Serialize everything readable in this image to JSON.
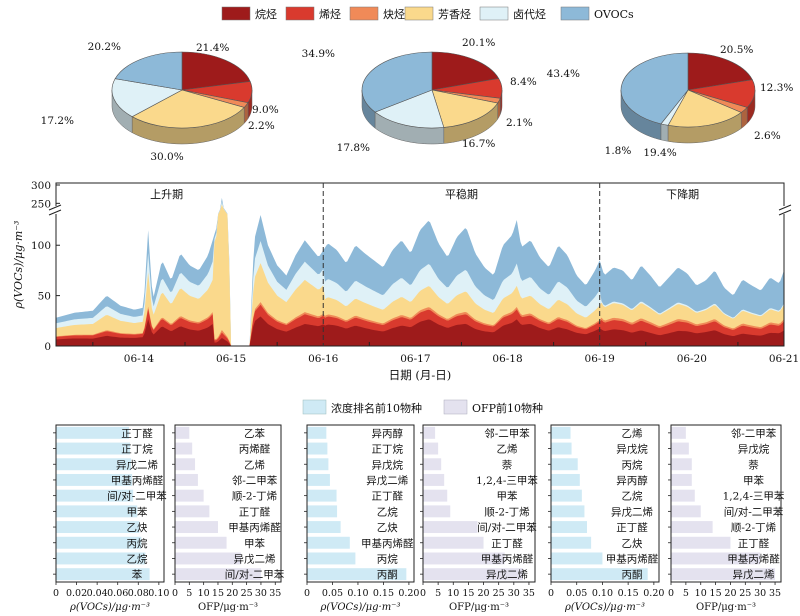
{
  "colors": {
    "alkane": "#9e1b1b",
    "alkene": "#d93a2e",
    "alkyne": "#f08a58",
    "aromatic": "#fad98c",
    "halo": "#dff1f7",
    "ovoc": "#8db9d8",
    "conc_bar": "#cfeaf5",
    "ofp_bar": "#e4e2ef"
  },
  "chart_data": [
    {
      "type": "pie",
      "name": "pie-rising",
      "labels": [
        "烷烃",
        "烯烃",
        "炔烃",
        "芳香烃",
        "卤代烃",
        "OVOCs"
      ],
      "values": [
        21.4,
        9.0,
        2.2,
        30.0,
        17.2,
        20.2
      ],
      "value_labels": [
        "21.4%",
        "9.0%",
        "2.2%",
        "30.0%",
        "17.2%",
        "20.2%"
      ],
      "legend_position": "top"
    },
    {
      "type": "pie",
      "name": "pie-stable",
      "labels": [
        "烷烃",
        "烯烃",
        "炔烃",
        "芳香烃",
        "卤代烃",
        "OVOCs"
      ],
      "values": [
        20.1,
        8.4,
        2.1,
        16.7,
        17.8,
        34.9
      ],
      "value_labels": [
        "20.1%",
        "8.4%",
        "2.1%",
        "16.7%",
        "17.8%",
        "34.9%"
      ]
    },
    {
      "type": "pie",
      "name": "pie-falling",
      "labels": [
        "烷烃",
        "烯烃",
        "炔烃",
        "芳香烃",
        "卤代烃",
        "OVOCs"
      ],
      "values": [
        20.5,
        12.3,
        2.6,
        19.4,
        1.8,
        43.4
      ],
      "value_labels": [
        "20.5%",
        "12.3%",
        "2.6%",
        "19.4%",
        "1.8%",
        "43.4%"
      ]
    },
    {
      "type": "area",
      "name": "timeseries",
      "stacked": true,
      "xlabel": "日期 (月-日)",
      "ylabel": "ρ(VOCs)/μg·m⁻³",
      "x_tick_labels": [
        "06-14",
        "06-15",
        "06-16",
        "06-17",
        "06-18",
        "06-19",
        "06-20",
        "06-21"
      ],
      "x_range_days": [
        13.6,
        21.5
      ],
      "y_ticks_lower": [
        0,
        50,
        100
      ],
      "y_ticks_upper": [
        250,
        300
      ],
      "y_break": [
        130,
        240
      ],
      "ylim": [
        0,
        300
      ],
      "periods": [
        {
          "label": "上升期",
          "start_day": 13.6,
          "end_day": 16.5
        },
        {
          "label": "平稳期",
          "start_day": 16.5,
          "end_day": 19.5
        },
        {
          "label": "下降期",
          "start_day": 19.5,
          "end_day": 21.5
        }
      ],
      "series_order": [
        "烷烃",
        "烯烃",
        "炔烃",
        "芳香烃",
        "卤代烃",
        "OVOCs"
      ],
      "total_keyframes": [
        [
          13.6,
          28
        ],
        [
          13.8,
          33
        ],
        [
          14.0,
          35
        ],
        [
          14.15,
          50
        ],
        [
          14.3,
          40
        ],
        [
          14.45,
          36
        ],
        [
          14.55,
          38
        ],
        [
          14.6,
          115
        ],
        [
          14.65,
          45
        ],
        [
          14.75,
          85
        ],
        [
          14.85,
          65
        ],
        [
          14.95,
          92
        ],
        [
          15.05,
          80
        ],
        [
          15.15,
          75
        ],
        [
          15.25,
          90
        ],
        [
          15.35,
          120
        ],
        [
          15.4,
          265
        ],
        [
          15.47,
          130
        ],
        [
          15.5,
          0
        ],
        [
          15.7,
          0
        ],
        [
          15.75,
          105
        ],
        [
          15.82,
          130
        ],
        [
          15.9,
          100
        ],
        [
          16.0,
          80
        ],
        [
          16.1,
          70
        ],
        [
          16.2,
          90
        ],
        [
          16.3,
          105
        ],
        [
          16.45,
          88
        ],
        [
          16.55,
          102
        ],
        [
          16.65,
          95
        ],
        [
          16.75,
          82
        ],
        [
          16.85,
          100
        ],
        [
          16.95,
          92
        ],
        [
          17.05,
          85
        ],
        [
          17.15,
          78
        ],
        [
          17.25,
          95
        ],
        [
          17.35,
          105
        ],
        [
          17.45,
          92
        ],
        [
          17.55,
          115
        ],
        [
          17.65,
          125
        ],
        [
          17.75,
          102
        ],
        [
          17.85,
          88
        ],
        [
          17.95,
          108
        ],
        [
          18.05,
          118
        ],
        [
          18.15,
          92
        ],
        [
          18.25,
          78
        ],
        [
          18.35,
          70
        ],
        [
          18.45,
          100
        ],
        [
          18.55,
          110
        ],
        [
          18.6,
          125
        ],
        [
          18.65,
          98
        ],
        [
          18.75,
          105
        ],
        [
          18.85,
          88
        ],
        [
          18.95,
          78
        ],
        [
          19.05,
          100
        ],
        [
          19.15,
          90
        ],
        [
          19.25,
          70
        ],
        [
          19.35,
          60
        ],
        [
          19.45,
          75
        ],
        [
          19.5,
          85
        ],
        [
          19.55,
          70
        ],
        [
          19.65,
          78
        ],
        [
          19.75,
          75
        ],
        [
          19.85,
          65
        ],
        [
          19.95,
          80
        ],
        [
          20.05,
          70
        ],
        [
          20.15,
          58
        ],
        [
          20.25,
          68
        ],
        [
          20.35,
          78
        ],
        [
          20.45,
          72
        ],
        [
          20.55,
          60
        ],
        [
          20.65,
          65
        ],
        [
          20.75,
          75
        ],
        [
          20.85,
          58
        ],
        [
          20.95,
          50
        ],
        [
          21.05,
          66
        ],
        [
          21.15,
          60
        ],
        [
          21.25,
          55
        ],
        [
          21.35,
          68
        ],
        [
          21.45,
          62
        ],
        [
          21.5,
          75
        ]
      ],
      "composition_by_period": [
        [
          0.22,
          0.09,
          0.02,
          0.3,
          0.17,
          0.2
        ],
        [
          0.2,
          0.08,
          0.02,
          0.17,
          0.18,
          0.35
        ],
        [
          0.2,
          0.12,
          0.03,
          0.19,
          0.02,
          0.44
        ]
      ],
      "aromatic_spike": {
        "start_day": 15.3,
        "end_day": 15.55,
        "values": [
          220,
          0
        ]
      }
    },
    {
      "type": "bar",
      "orientation": "horizontal",
      "name": "conc-rising",
      "categories": [
        "正丁醛",
        "正丁烷",
        "异戊二烯",
        "甲基丙烯醛",
        "间/对-二甲苯",
        "甲苯",
        "乙炔",
        "丙烷",
        "乙烷",
        "苯"
      ],
      "values": [
        0.071,
        0.072,
        0.073,
        0.074,
        0.075,
        0.079,
        0.081,
        0.083,
        0.087,
        0.091
      ],
      "xlabel": "ρ(VOCs)/μg·m⁻³",
      "x_ticks": [
        0,
        0.02,
        0.04,
        0.06,
        0.08,
        0.1
      ],
      "x_tick_labels": [
        "0",
        "0.02",
        "0.04",
        "0.06",
        "0.08",
        "0.10"
      ],
      "xlim": [
        0,
        0.105
      ]
    },
    {
      "type": "bar",
      "orientation": "horizontal",
      "name": "ofp-rising",
      "categories": [
        "乙苯",
        "丙烯醛",
        "乙烯",
        "邻-二甲苯",
        "顺-2-丁烯",
        "正丁醛",
        "甲基丙烯醛",
        "甲苯",
        "异戊二烯",
        "间/对-二甲苯"
      ],
      "values": [
        5,
        6,
        7,
        8,
        10,
        12,
        15,
        18,
        23,
        30
      ],
      "xlabel": "OFP/μg·m⁻³",
      "x_ticks": [
        0,
        5,
        10,
        15,
        20,
        25,
        30,
        35
      ],
      "x_tick_labels": [
        "0",
        "5",
        "10",
        "15",
        "20",
        "25",
        "30",
        "35"
      ],
      "xlim": [
        0,
        37
      ]
    },
    {
      "type": "bar",
      "orientation": "horizontal",
      "name": "conc-stable",
      "categories": [
        "异丙醇",
        "正丁烷",
        "异戊烷",
        "异戊二烯",
        "正丁醛",
        "乙烷",
        "乙炔",
        "甲基丙烯醛",
        "丙烷",
        "丙酮"
      ],
      "values": [
        0.038,
        0.04,
        0.042,
        0.045,
        0.058,
        0.059,
        0.066,
        0.084,
        0.095,
        0.195
      ],
      "xlabel": "ρ(VOCs)/μg·m⁻³",
      "x_ticks": [
        0,
        0.05,
        0.1,
        0.15,
        0.2
      ],
      "x_tick_labels": [
        "0",
        "0.05",
        "0.10",
        "0.15",
        "0.20"
      ],
      "xlim": [
        0,
        0.21
      ]
    },
    {
      "type": "bar",
      "orientation": "horizontal",
      "name": "ofp-stable",
      "categories": [
        "邻-二甲苯",
        "乙烯",
        "萘",
        "1,2,4-三甲苯",
        "甲苯",
        "顺-2-丁烯",
        "间/对-二甲苯",
        "正丁醛",
        "甲基丙烯醛",
        "异戊二烯"
      ],
      "values": [
        4,
        5,
        6,
        7,
        8,
        9,
        18,
        20,
        27,
        33
      ],
      "xlabel": "OFP/μg·m⁻³",
      "x_ticks": [
        0,
        5,
        10,
        15,
        20,
        25,
        30,
        35
      ],
      "x_tick_labels": [
        "0",
        "5",
        "10",
        "15",
        "20",
        "25",
        "30",
        "35"
      ],
      "xlim": [
        0,
        37
      ]
    },
    {
      "type": "bar",
      "orientation": "horizontal",
      "name": "conc-falling",
      "categories": [
        "乙烯",
        "异戊烷",
        "丙烷",
        "异丙醇",
        "乙烷",
        "异戊二烯",
        "正丁醛",
        "乙炔",
        "甲基丙烯醛",
        "丙酮"
      ],
      "values": [
        0.038,
        0.04,
        0.052,
        0.056,
        0.06,
        0.065,
        0.07,
        0.078,
        0.1,
        0.188
      ],
      "xlabel": "ρ(VOCs)/μg·m⁻³",
      "x_ticks": [
        0,
        0.05,
        0.1,
        0.15,
        0.2
      ],
      "x_tick_labels": [
        "0",
        "0.05",
        "0.10",
        "0.15",
        "0.20"
      ],
      "xlim": [
        0,
        0.21
      ]
    },
    {
      "type": "bar",
      "orientation": "horizontal",
      "name": "ofp-falling",
      "categories": [
        "邻-二甲苯",
        "异戊烷",
        "萘",
        "甲苯",
        "1,2,4-三甲苯",
        "间/对-二甲苯",
        "顺-2-丁烯",
        "正丁醛",
        "甲基丙烯醛",
        "异戊二烯"
      ],
      "values": [
        5,
        6,
        7,
        7,
        8,
        10,
        14,
        20,
        30,
        35
      ],
      "xlabel": "OFP/μg·m⁻³",
      "x_ticks": [
        0,
        5,
        10,
        15,
        20,
        25,
        30,
        35
      ],
      "x_tick_labels": [
        "0",
        "5",
        "10",
        "15",
        "20",
        "25",
        "30",
        "35"
      ],
      "xlim": [
        0,
        37
      ]
    }
  ],
  "bar_legend": {
    "conc_label": "浓度排名前10物种",
    "ofp_label": "OFP前10物种"
  }
}
